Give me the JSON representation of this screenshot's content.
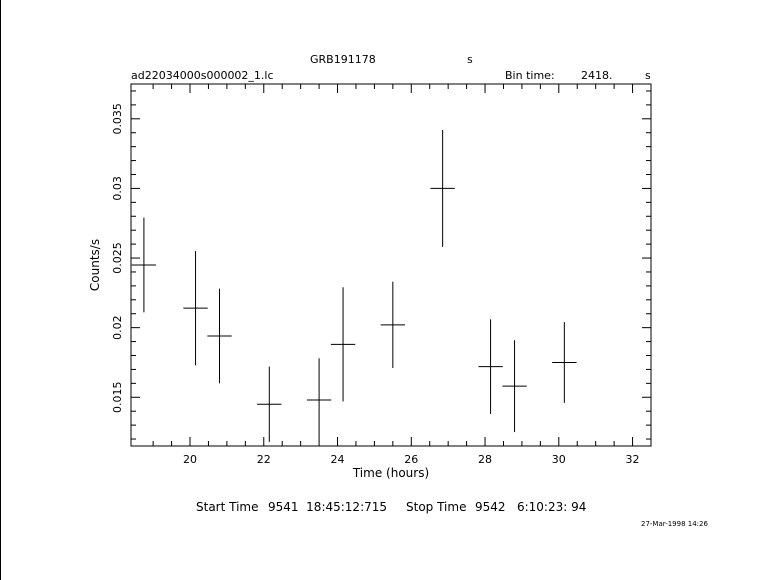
{
  "header": {
    "object": "GRB191178",
    "object_unit": "s",
    "file": "ad22034000s000002_1.lc",
    "bin_label": "Bin time:",
    "bin_value": "2418.",
    "bin_unit": "s"
  },
  "chart_data": {
    "type": "scatter",
    "xlabel": "Time (hours)",
    "ylabel": "Counts/s",
    "xlim": [
      18.4,
      32.5
    ],
    "ylim": [
      0.0115,
      0.0375
    ],
    "xticks": [
      20,
      22,
      24,
      26,
      28,
      30,
      32
    ],
    "xtick_labels": [
      "20",
      "22",
      "24",
      "26",
      "28",
      "30",
      "32"
    ],
    "yticks": [
      0.015,
      0.02,
      0.025,
      0.03,
      0.035
    ],
    "ytick_labels": [
      "0.015",
      "0.02",
      "0.025",
      "0.03",
      "0.035"
    ],
    "grid": false,
    "points": [
      {
        "x": 18.75,
        "y": 0.0245,
        "xerr": 0.33,
        "yerr": 0.0034
      },
      {
        "x": 20.15,
        "y": 0.0214,
        "xerr": 0.33,
        "yerr": 0.0041
      },
      {
        "x": 20.8,
        "y": 0.0194,
        "xerr": 0.33,
        "yerr": 0.0034
      },
      {
        "x": 22.15,
        "y": 0.0145,
        "xerr": 0.33,
        "yerr": 0.0027
      },
      {
        "x": 23.5,
        "y": 0.0148,
        "xerr": 0.33,
        "yerr": 0.003
      },
      {
        "x": 24.15,
        "y": 0.0188,
        "xerr": 0.33,
        "yerr": 0.0041
      },
      {
        "x": 25.5,
        "y": 0.0202,
        "xerr": 0.33,
        "yerr": 0.0031
      },
      {
        "x": 26.85,
        "y": 0.03,
        "xerr": 0.33,
        "yerr": 0.0042
      },
      {
        "x": 28.15,
        "y": 0.0172,
        "xerr": 0.33,
        "yerr": 0.0034
      },
      {
        "x": 28.8,
        "y": 0.0158,
        "xerr": 0.33,
        "yerr": 0.0033
      },
      {
        "x": 30.15,
        "y": 0.0175,
        "xerr": 0.33,
        "yerr": 0.0029
      }
    ]
  },
  "footer": {
    "start_label": "Start Time",
    "start_value": "9541  18:45:12:715",
    "stop_label": "Stop Time",
    "stop_value": "9542   6:10:23: 94",
    "timestamp": "27-Mar-1998 14:26"
  }
}
